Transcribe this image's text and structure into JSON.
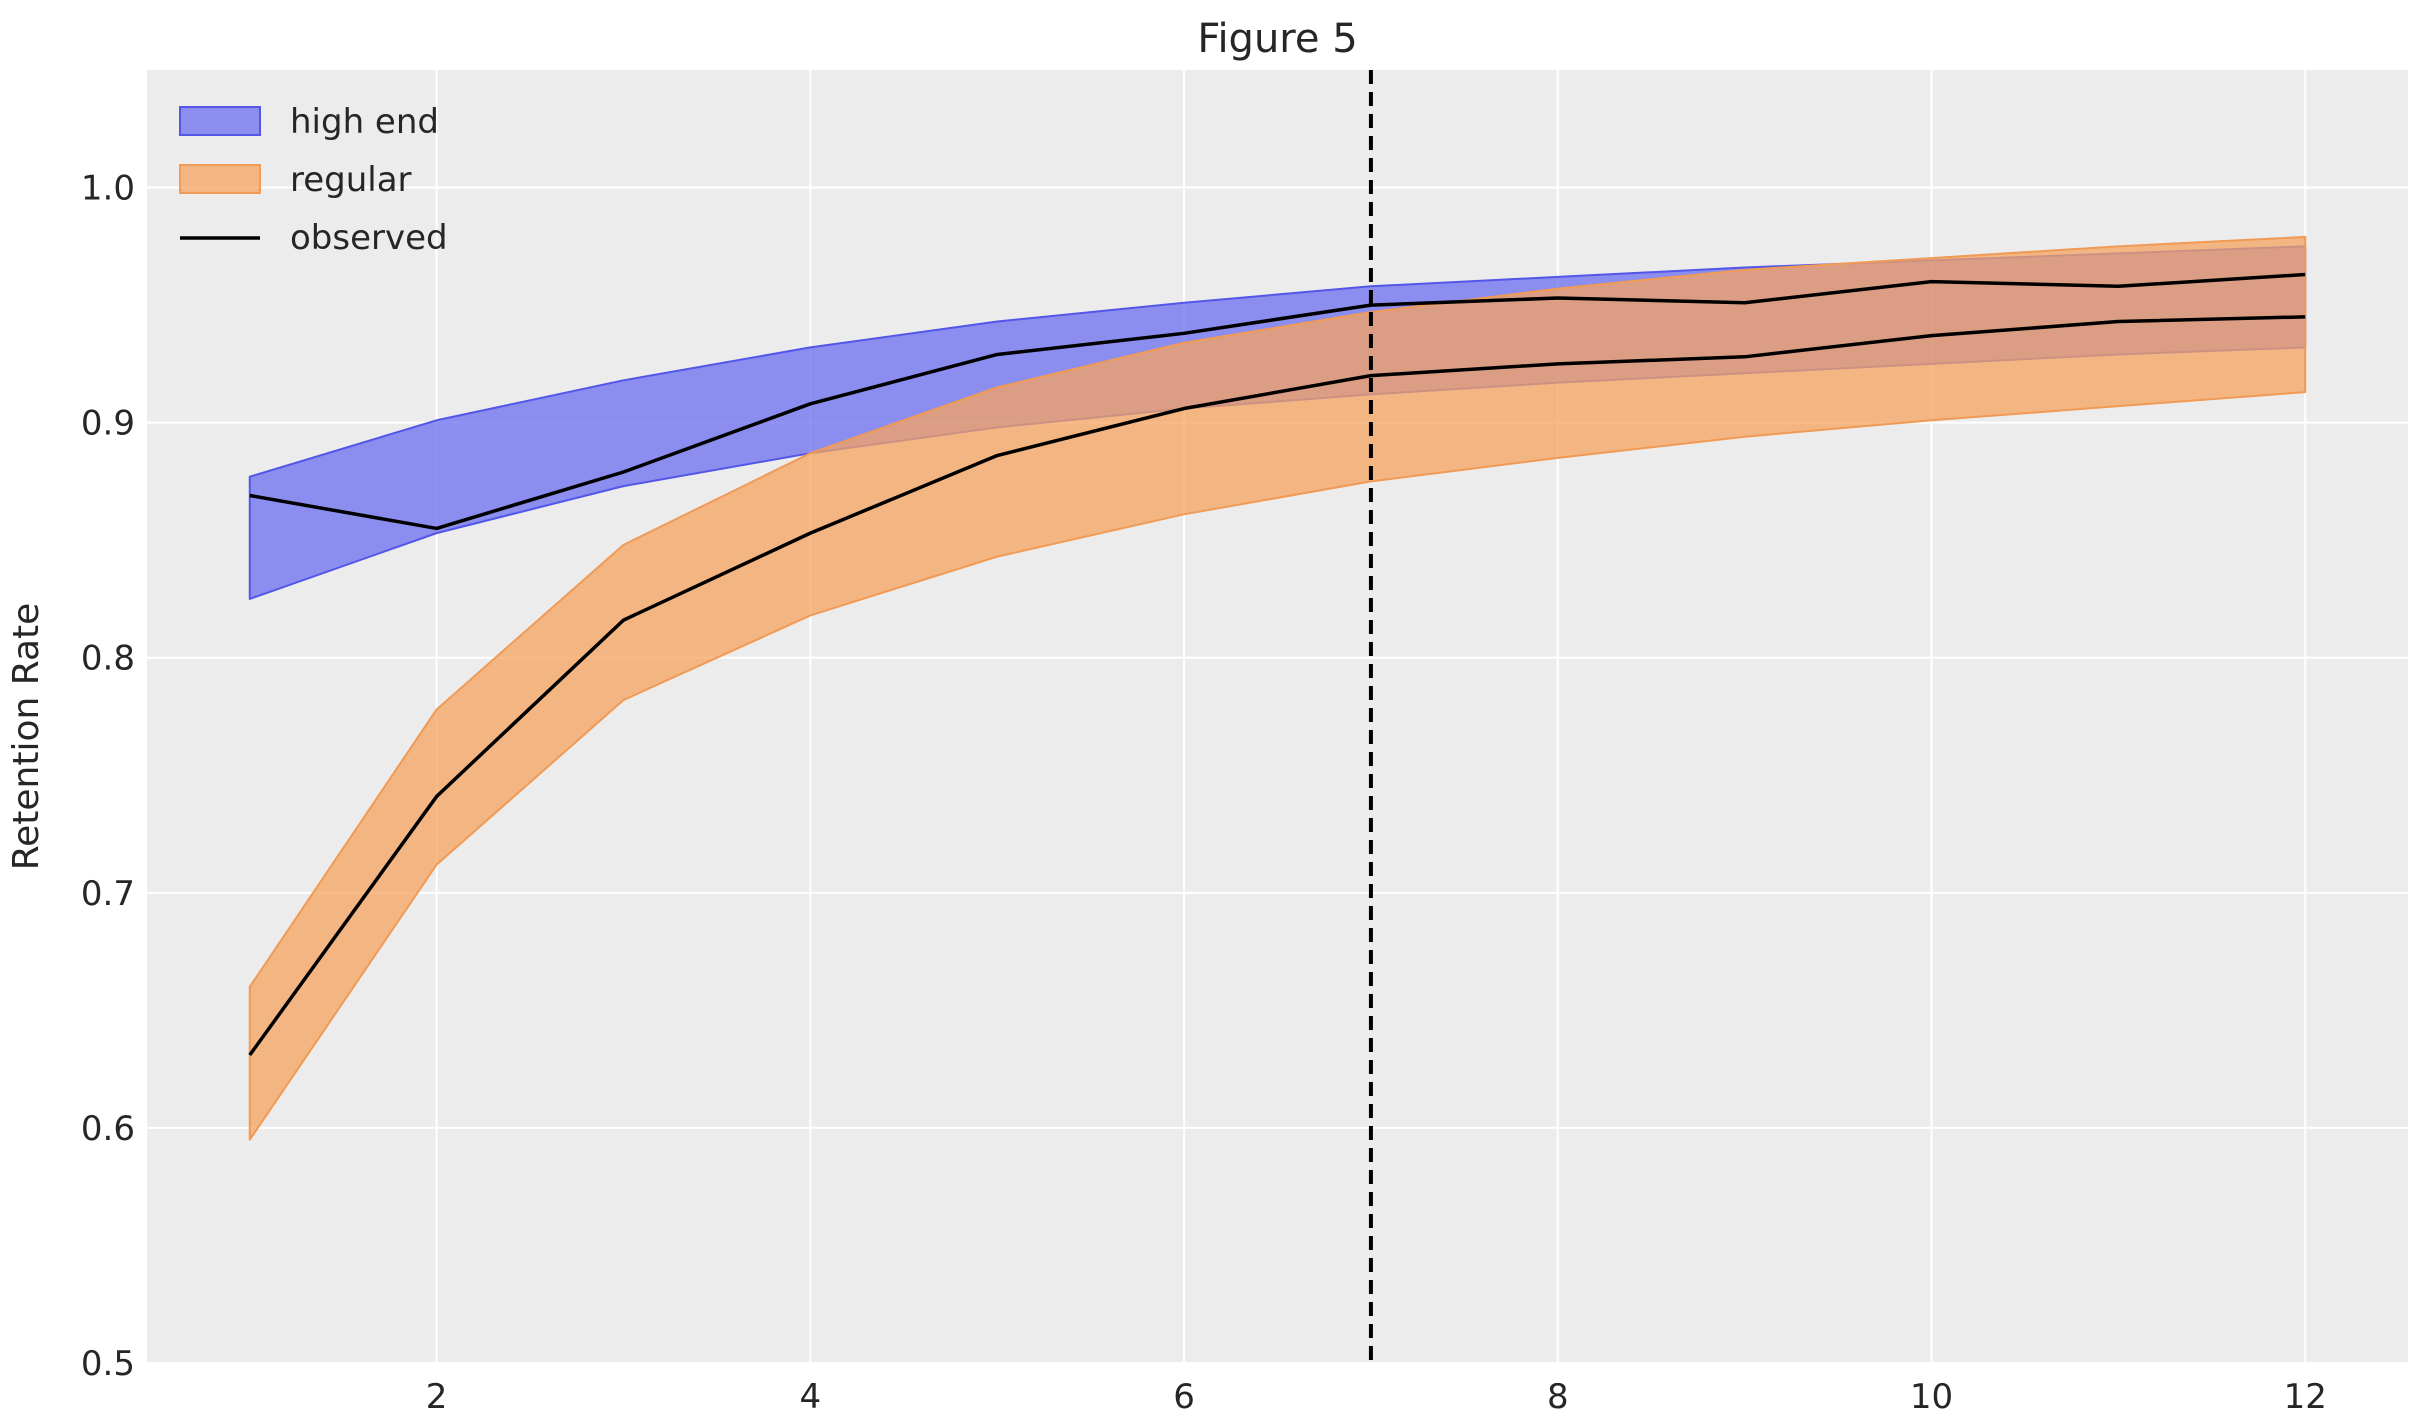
{
  "chart_data": {
    "type": "area",
    "title": "Figure 5",
    "xlabel": "",
    "ylabel": "Retention Rate",
    "xlim": [
      0.45,
      12.55
    ],
    "ylim": [
      0.5,
      1.05
    ],
    "x_ticks": [
      2,
      4,
      6,
      8,
      10,
      12
    ],
    "y_ticks": [
      0.5,
      0.6,
      0.7,
      0.8,
      0.9,
      1.0
    ],
    "x_tick_labels": [
      "2",
      "4",
      "6",
      "8",
      "10",
      "12"
    ],
    "y_tick_labels": [
      "0.5",
      "0.6",
      "0.7",
      "0.8",
      "0.9",
      "1.0"
    ],
    "grid": true,
    "legend_position": "top-left",
    "background_color": "#ececec",
    "vertical_line": {
      "x": 7,
      "style": "dashed",
      "color": "#000000"
    },
    "x": [
      1,
      2,
      3,
      4,
      5,
      6,
      7,
      8,
      9,
      10,
      11,
      12
    ],
    "bands": [
      {
        "name": "high end",
        "color": "#6b6ef0",
        "stroke": "#5257e8",
        "lower": [
          0.825,
          0.853,
          0.873,
          0.887,
          0.898,
          0.906,
          0.912,
          0.917,
          0.921,
          0.925,
          0.929,
          0.932
        ],
        "upper": [
          0.877,
          0.901,
          0.918,
          0.932,
          0.943,
          0.951,
          0.958,
          0.962,
          0.966,
          0.969,
          0.972,
          0.975
        ]
      },
      {
        "name": "regular",
        "color": "#f5a460",
        "stroke": "#f09a55",
        "lower": [
          0.595,
          0.712,
          0.782,
          0.818,
          0.843,
          0.861,
          0.875,
          0.885,
          0.894,
          0.901,
          0.907,
          0.913
        ],
        "upper": [
          0.66,
          0.778,
          0.848,
          0.887,
          0.915,
          0.934,
          0.947,
          0.957,
          0.965,
          0.97,
          0.975,
          0.979
        ]
      }
    ],
    "series": [
      {
        "name": "observed",
        "color": "#000000",
        "values": [
          0.869,
          0.855,
          0.879,
          0.908,
          0.929,
          0.938,
          0.95,
          0.953,
          0.951,
          0.96,
          0.958,
          0.963
        ]
      },
      {
        "color": "#000000",
        "values": [
          0.631,
          0.741,
          0.816,
          0.853,
          0.886,
          0.906,
          0.92,
          0.925,
          0.928,
          0.937,
          0.943,
          0.945
        ]
      }
    ],
    "legend": [
      "high end",
      "regular",
      "observed"
    ]
  }
}
